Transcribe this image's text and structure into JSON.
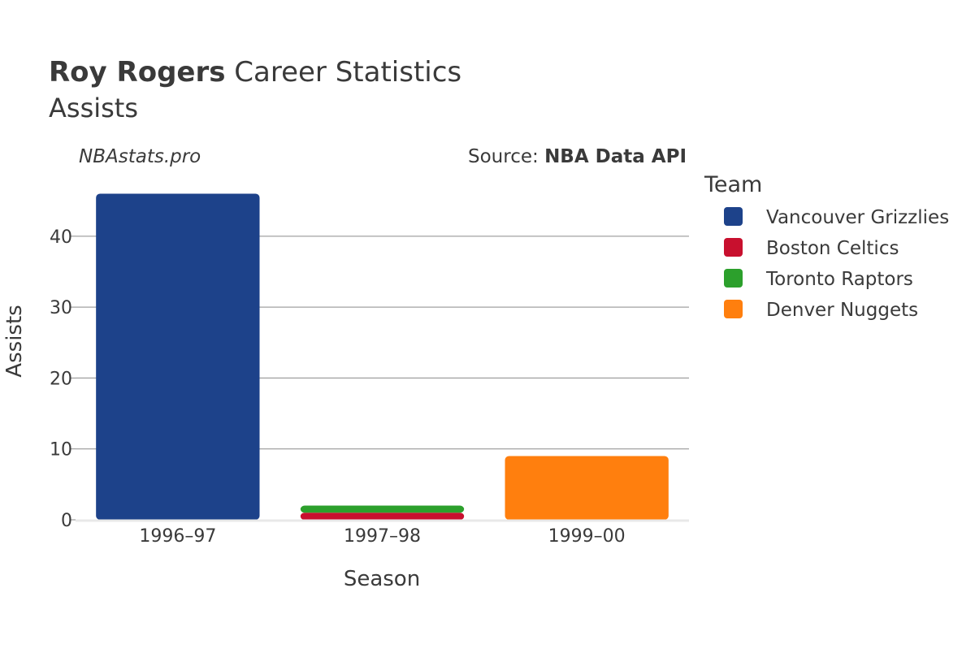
{
  "header": {
    "title_bold": "Roy Rogers",
    "title_rest": " Career Statistics",
    "subtitle": "Assists"
  },
  "credits": {
    "site": "NBAstats.pro",
    "source_prefix": "Source: ",
    "source_name": "NBA Data API"
  },
  "legend": {
    "title": "Team",
    "placement": "right"
  },
  "chart_data": {
    "type": "bar",
    "stacked": true,
    "categories": [
      "1996–97",
      "1997–98",
      "1999–00"
    ],
    "series": [
      {
        "name": "Vancouver Grizzlies",
        "color": "#1d428a",
        "values": [
          46,
          0,
          0
        ]
      },
      {
        "name": "Boston Celtics",
        "color": "#c8102e",
        "values": [
          0,
          1,
          0
        ]
      },
      {
        "name": "Toronto Raptors",
        "color": "#2ca02c",
        "values": [
          0,
          1,
          0
        ]
      },
      {
        "name": "Denver Nuggets",
        "color": "#ff7f0e",
        "values": [
          0,
          0,
          9
        ]
      }
    ],
    "xlabel": "Season",
    "ylabel": "Assists",
    "ylim": [
      0,
      48
    ],
    "yticks": [
      0,
      10,
      20,
      30,
      40
    ],
    "grid": true
  }
}
